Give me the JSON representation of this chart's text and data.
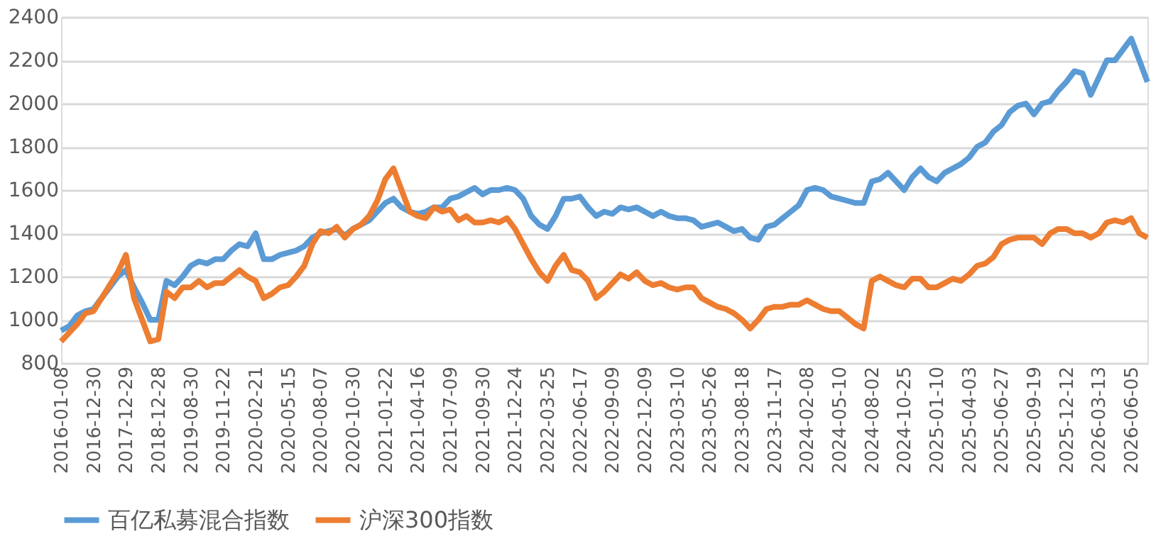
{
  "chart_data": {
    "type": "line",
    "categories": [
      "2016-01-08",
      null,
      null,
      null,
      "2016-12-30",
      null,
      null,
      null,
      "2017-12-29",
      null,
      null,
      null,
      "2018-12-28",
      null,
      null,
      null,
      "2019-08-30",
      null,
      null,
      null,
      "2019-11-22",
      null,
      null,
      null,
      "2020-02-21",
      null,
      null,
      null,
      "2020-05-15",
      null,
      null,
      null,
      "2020-08-07",
      null,
      null,
      null,
      "2020-10-30",
      null,
      null,
      null,
      "2021-01-22",
      null,
      null,
      null,
      "2021-04-16",
      null,
      null,
      null,
      "2021-07-09",
      null,
      null,
      null,
      "2021-09-30",
      null,
      null,
      null,
      "2021-12-24",
      null,
      null,
      null,
      "2022-03-25",
      null,
      null,
      null,
      "2022-06-17",
      null,
      null,
      null,
      "2022-09-09",
      null,
      null,
      null,
      "2022-12-09",
      null,
      null,
      null,
      "2023-03-10",
      null,
      null,
      null,
      "2023-05-26",
      null,
      null,
      null,
      "2023-08-18",
      null,
      null,
      null,
      "2023-11-17",
      null,
      null,
      null,
      "2024-02-08",
      null,
      null,
      null,
      "2024-05-10",
      null,
      null,
      null,
      "2024-08-02",
      null,
      null,
      null,
      "2024-10-25",
      null,
      null,
      null,
      "2025-01-10",
      null,
      null,
      null,
      "2025-04-03",
      null,
      null,
      null,
      "2025-06-27",
      null,
      null,
      null,
      "2025-09-19",
      null,
      null,
      null,
      "2025-12-12",
      null,
      null,
      null,
      "2026-03-13",
      null,
      null,
      null,
      "2026-06-05",
      null,
      null
    ],
    "series": [
      {
        "name": "百亿私募混合指数",
        "color": "#5b9bd5",
        "values": [
          950,
          970,
          1020,
          1040,
          1050,
          1100,
          1150,
          1200,
          1230,
          1150,
          1080,
          1000,
          1000,
          1180,
          1160,
          1200,
          1250,
          1270,
          1260,
          1280,
          1280,
          1320,
          1350,
          1340,
          1400,
          1280,
          1280,
          1300,
          1310,
          1320,
          1340,
          1380,
          1400,
          1410,
          1420,
          1390,
          1420,
          1440,
          1460,
          1500,
          1540,
          1560,
          1520,
          1500,
          1490,
          1500,
          1520,
          1520,
          1560,
          1570,
          1590,
          1610,
          1580,
          1600,
          1600,
          1610,
          1600,
          1560,
          1480,
          1440,
          1420,
          1480,
          1560,
          1560,
          1570,
          1520,
          1480,
          1500,
          1490,
          1520,
          1510,
          1520,
          1500,
          1480,
          1500,
          1480,
          1470,
          1470,
          1460,
          1430,
          1440,
          1450,
          1430,
          1410,
          1420,
          1380,
          1370,
          1430,
          1440,
          1470,
          1500,
          1530,
          1600,
          1610,
          1600,
          1570,
          1560,
          1550,
          1540,
          1540,
          1640,
          1650,
          1680,
          1640,
          1600,
          1660,
          1700,
          1660,
          1640,
          1680,
          1700,
          1720,
          1750,
          1800,
          1820,
          1870,
          1900,
          1960,
          1990,
          2000,
          1950,
          2000,
          2010,
          2060,
          2100,
          2150,
          2140,
          2040,
          2120,
          2200,
          2200,
          2250,
          2300,
          2200,
          2100
        ]
      },
      {
        "name": "沪深300指数",
        "color": "#ed7d31",
        "values": [
          900,
          940,
          980,
          1030,
          1040,
          1100,
          1160,
          1220,
          1300,
          1100,
          1000,
          900,
          910,
          1130,
          1100,
          1150,
          1150,
          1180,
          1150,
          1170,
          1170,
          1200,
          1230,
          1200,
          1180,
          1100,
          1120,
          1150,
          1160,
          1200,
          1250,
          1350,
          1410,
          1400,
          1430,
          1380,
          1420,
          1440,
          1480,
          1550,
          1650,
          1700,
          1600,
          1500,
          1480,
          1470,
          1520,
          1500,
          1510,
          1460,
          1480,
          1450,
          1450,
          1460,
          1450,
          1470,
          1420,
          1350,
          1280,
          1220,
          1180,
          1250,
          1300,
          1230,
          1220,
          1180,
          1100,
          1130,
          1170,
          1210,
          1190,
          1220,
          1180,
          1160,
          1170,
          1150,
          1140,
          1150,
          1150,
          1100,
          1080,
          1060,
          1050,
          1030,
          1000,
          960,
          1000,
          1050,
          1060,
          1060,
          1070,
          1070,
          1090,
          1070,
          1050,
          1040,
          1040,
          1010,
          980,
          960,
          1180,
          1200,
          1180,
          1160,
          1150,
          1190,
          1190,
          1150,
          1150,
          1170,
          1190,
          1180,
          1210,
          1250,
          1260,
          1290,
          1350,
          1370,
          1380,
          1380,
          1380,
          1350,
          1400,
          1420,
          1420,
          1400,
          1400,
          1380,
          1400,
          1450,
          1460,
          1450,
          1470,
          1400,
          1380
        ]
      }
    ],
    "ylim": [
      800,
      2400
    ],
    "yticks": [
      800,
      1000,
      1200,
      1400,
      1600,
      1800,
      2000,
      2200,
      2400
    ],
    "grid": "y",
    "legend": "bottom",
    "line_style": "solid",
    "marker": "none"
  }
}
